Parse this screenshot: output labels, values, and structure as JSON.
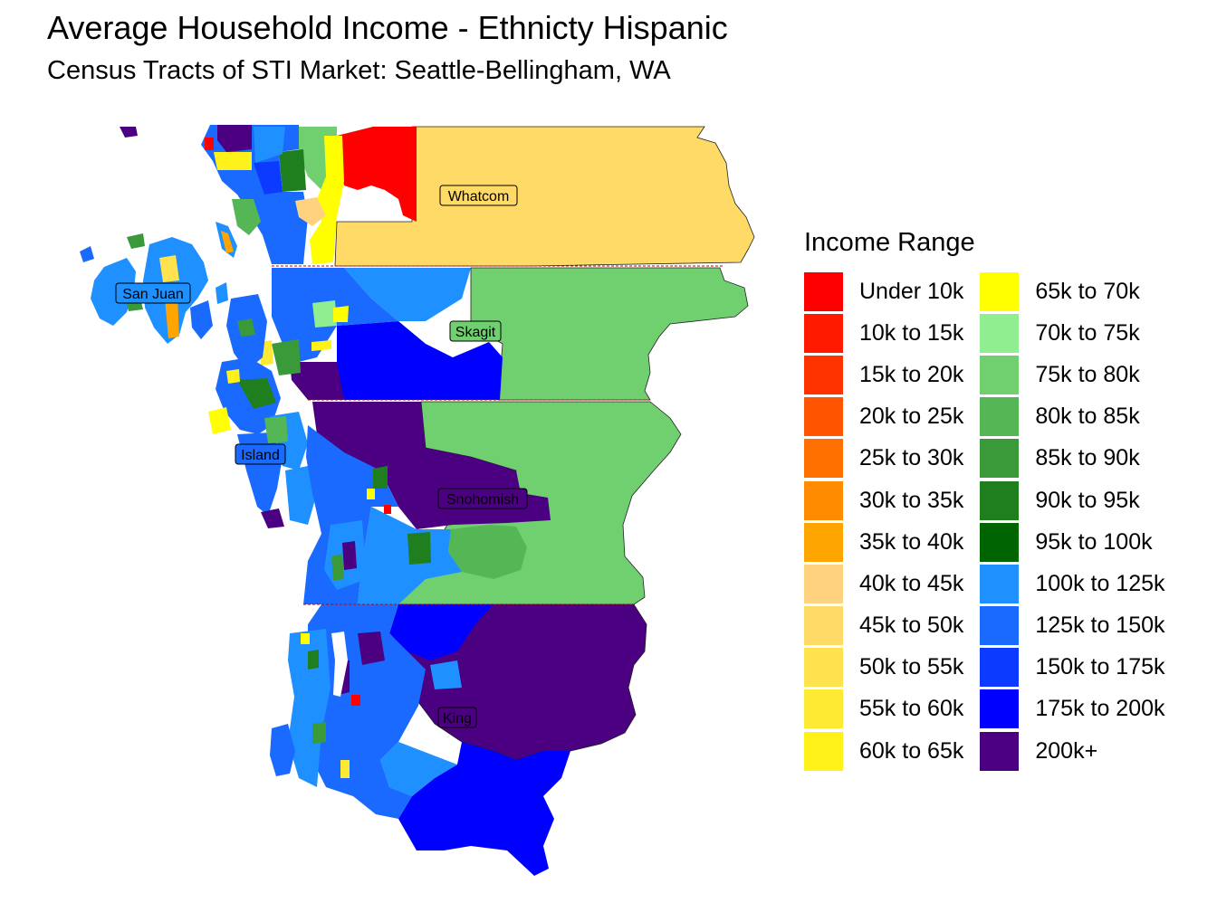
{
  "title": "Average Household Income - Ethnicty Hispanic",
  "subtitle": "Census Tracts of STI Market: Seattle-Bellingham, WA",
  "legend": {
    "title": "Income Range",
    "items": [
      {
        "label": "Under 10k",
        "color": "#FF0000"
      },
      {
        "label": "10k to 15k",
        "color": "#FF1A00"
      },
      {
        "label": "15k to 20k",
        "color": "#FF3300"
      },
      {
        "label": "20k to 25k",
        "color": "#FF5500"
      },
      {
        "label": "25k to 30k",
        "color": "#FF7000"
      },
      {
        "label": "30k to 35k",
        "color": "#FF8C00"
      },
      {
        "label": "35k to 40k",
        "color": "#FFA500"
      },
      {
        "label": "40k to 45k",
        "color": "#FFD27F"
      },
      {
        "label": "45k to 50k",
        "color": "#FFDA66"
      },
      {
        "label": "50k to 55k",
        "color": "#FFE24D"
      },
      {
        "label": "55k to 60k",
        "color": "#FFEA33"
      },
      {
        "label": "60k to 65k",
        "color": "#FFF21A"
      },
      {
        "label": "65k to 70k",
        "color": "#FFFF00"
      },
      {
        "label": "70k to 75k",
        "color": "#90EE90"
      },
      {
        "label": "75k to 80k",
        "color": "#70D070"
      },
      {
        "label": "80k to 85k",
        "color": "#55B655"
      },
      {
        "label": "85k to 90k",
        "color": "#3A9A3A"
      },
      {
        "label": "90k to 95k",
        "color": "#1F7F1F"
      },
      {
        "label": "95k to 100k",
        "color": "#006400"
      },
      {
        "label": "100k to 125k",
        "color": "#1E90FF"
      },
      {
        "label": "125k to 150k",
        "color": "#1A6AFF"
      },
      {
        "label": "150k to 175k",
        "color": "#0D3AFF"
      },
      {
        "label": "175k to 200k",
        "color": "#0000FF"
      },
      {
        "label": "200k+",
        "color": "#4B0082"
      }
    ]
  },
  "counties": [
    {
      "name": "Whatcom",
      "color": "#FFDA66"
    },
    {
      "name": "San Juan",
      "color": "#1E90FF"
    },
    {
      "name": "Skagit",
      "color": "#70D070"
    },
    {
      "name": "Island",
      "color": "#1A6AFF"
    },
    {
      "name": "Snohomish",
      "color": "#4B0082"
    },
    {
      "name": "King",
      "color": "#4B0082"
    }
  ]
}
